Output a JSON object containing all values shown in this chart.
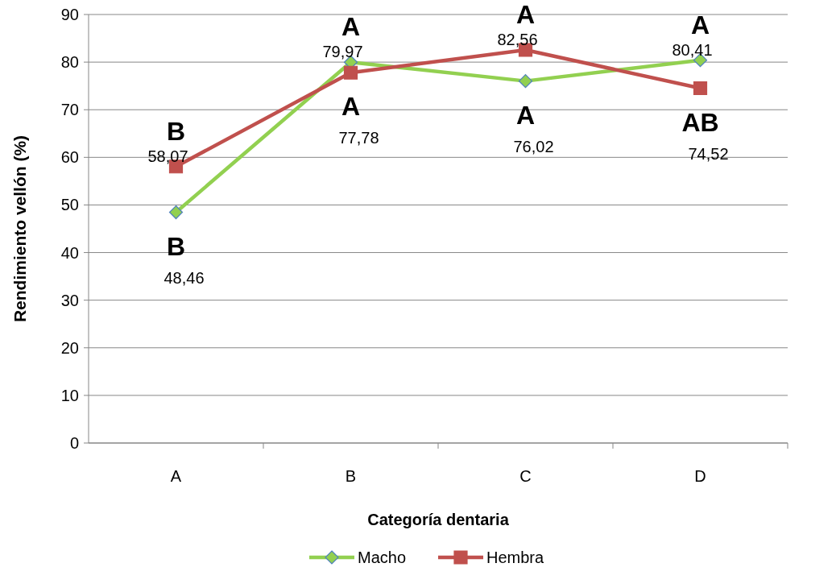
{
  "chart_data": {
    "type": "line",
    "xlabel": "Categoría dentaria",
    "ylabel": "Rendimiento vellón (%)",
    "categories": [
      "A",
      "B",
      "C",
      "D"
    ],
    "series": [
      {
        "name": "Macho",
        "color": "#92d050",
        "marker": "diamond",
        "values": [
          48.46,
          79.97,
          76.02,
          80.41
        ],
        "value_labels": [
          "48,46",
          "79,97",
          "76,02",
          "80,41"
        ]
      },
      {
        "name": "Hembra",
        "color": "#c0504d",
        "marker": "square",
        "values": [
          58.07,
          77.78,
          82.56,
          74.52
        ],
        "value_labels": [
          "58,07",
          "77,78",
          "82,56",
          "74,52"
        ]
      }
    ],
    "ylim": [
      0,
      90
    ],
    "yticks": [
      0,
      10,
      20,
      30,
      40,
      50,
      60,
      70,
      80,
      90
    ],
    "grid": "y",
    "legend": "bottom",
    "annotations": [
      "B",
      "B",
      "A",
      "A",
      "A",
      "A",
      "A",
      "AB"
    ]
  }
}
